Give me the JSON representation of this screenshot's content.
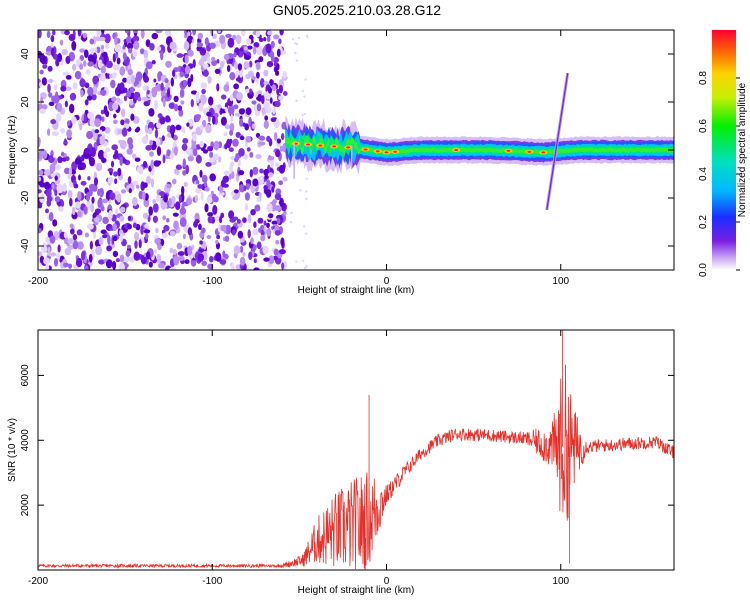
{
  "title": "GN05.2025.210.03.28.G12",
  "chart_data": [
    {
      "type": "heatmap",
      "xlabel": "Height of straight line (km)",
      "ylabel": "Frequency (Hz)",
      "xlim": [
        -200,
        165
      ],
      "ylim": [
        -50,
        50
      ],
      "xticks": [
        -200,
        -100,
        0,
        100
      ],
      "yticks": [
        -40,
        -20,
        0,
        20,
        40
      ],
      "colorbar": {
        "label": "Normalized spectral amplitude",
        "range": [
          0,
          1
        ],
        "ticks": [
          "0.0",
          "0.2",
          "0.4",
          "0.6",
          "0.8"
        ]
      },
      "features": {
        "noise_region_x": [
          -200,
          -58
        ],
        "carrier_track": [
          {
            "x": -58,
            "f": 3
          },
          {
            "x": -40,
            "f": 2
          },
          {
            "x": -20,
            "f": 1
          },
          {
            "x": 0,
            "f": -1
          },
          {
            "x": 20,
            "f": 0
          },
          {
            "x": 60,
            "f": 0
          },
          {
            "x": 90,
            "f": -1
          },
          {
            "x": 110,
            "f": 0
          },
          {
            "x": 165,
            "f": 0
          }
        ],
        "chirp_line": {
          "x_start": 92,
          "f_start": -25,
          "x_end": 104,
          "f_end": 32
        }
      }
    },
    {
      "type": "line",
      "xlabel": "Height of straight line (km)",
      "ylabel": "SNR (10 * v/v)",
      "xlim": [
        -200,
        165
      ],
      "ylim": [
        0,
        7400
      ],
      "xticks": [
        -200,
        -100,
        0,
        100
      ],
      "yticks": [
        2000,
        4000,
        6000
      ],
      "color": "#e8302a",
      "profile": [
        {
          "x": -200,
          "y": 130,
          "spread": 60
        },
        {
          "x": -60,
          "y": 130,
          "spread": 60
        },
        {
          "x": -48,
          "y": 300,
          "spread": 250
        },
        {
          "x": -40,
          "y": 900,
          "spread": 900
        },
        {
          "x": -30,
          "y": 1200,
          "spread": 1500
        },
        {
          "x": -15,
          "y": 1400,
          "spread": 2000
        },
        {
          "x": -8,
          "y": 1700,
          "spread": 1800
        },
        {
          "x": 0,
          "y": 2300,
          "spread": 400
        },
        {
          "x": 10,
          "y": 3000,
          "spread": 300
        },
        {
          "x": 20,
          "y": 3600,
          "spread": 250
        },
        {
          "x": 30,
          "y": 4000,
          "spread": 250
        },
        {
          "x": 40,
          "y": 4200,
          "spread": 250
        },
        {
          "x": 60,
          "y": 4150,
          "spread": 250
        },
        {
          "x": 80,
          "y": 4050,
          "spread": 250
        },
        {
          "x": 95,
          "y": 3800,
          "spread": 900
        },
        {
          "x": 102,
          "y": 3800,
          "spread": 3500
        },
        {
          "x": 108,
          "y": 3800,
          "spread": 1500
        },
        {
          "x": 115,
          "y": 3800,
          "spread": 250
        },
        {
          "x": 140,
          "y": 3900,
          "spread": 250
        },
        {
          "x": 155,
          "y": 3950,
          "spread": 250
        },
        {
          "x": 165,
          "y": 3600,
          "spread": 250
        }
      ],
      "peaks": [
        {
          "x": -10,
          "y": 5400
        },
        {
          "x": 101,
          "y": 7400
        },
        {
          "x": 105,
          "y": 200
        }
      ]
    }
  ]
}
